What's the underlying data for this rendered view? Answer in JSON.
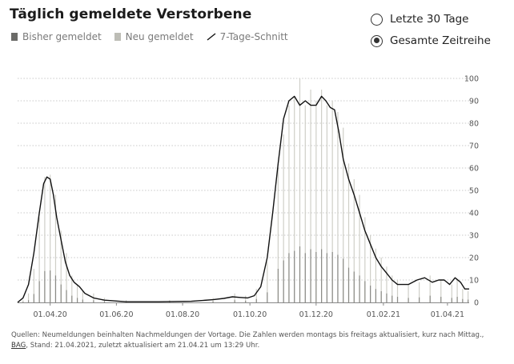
{
  "header": {
    "title": "Täglich gemeldete Verstorbene"
  },
  "legend": {
    "items": [
      {
        "key": "bisher",
        "label": "Bisher gemeldet",
        "color": "#6b6b68"
      },
      {
        "key": "neu",
        "label": "Neu gemeldet",
        "color": "#bdbdb6"
      },
      {
        "key": "avg",
        "label": "7-Tage-Schnitt",
        "color": "#111111"
      }
    ]
  },
  "range_toggle": {
    "options": [
      {
        "label": "Letzte 30 Tage",
        "selected": false
      },
      {
        "label": "Gesamte Zeitreihe",
        "selected": true
      }
    ]
  },
  "footer": {
    "text_before": "Quellen: Neumeldungen beinhalten Nachmeldungen der Vortage. Die Zahlen werden montags bis freitags aktualisiert, kurz nach Mittag., ",
    "source_label": "BAG",
    "text_after": ", Stand: 21.04.2021, zuletzt aktualisiert am 21.04.21 um 13:29 Uhr."
  },
  "chart_data": {
    "type": "bar",
    "title": "Täglich gemeldete Verstorbene",
    "xlabel": "",
    "ylabel": "",
    "ylim": [
      0,
      100
    ],
    "y_ticks": [
      0,
      10,
      20,
      30,
      40,
      50,
      60,
      70,
      80,
      90,
      100
    ],
    "x_ticks": [
      {
        "label": "01.04.20",
        "day": 30
      },
      {
        "label": "01.06.20",
        "day": 91
      },
      {
        "label": "01.08.20",
        "day": 152
      },
      {
        "label": "01.10.20",
        "day": 214
      },
      {
        "label": "01.12.20",
        "day": 275
      },
      {
        "label": "01.02.21",
        "day": 337
      },
      {
        "label": "01.04.21",
        "day": 396
      }
    ],
    "x_domain": [
      0,
      416
    ],
    "grid": true,
    "daily_sampled": [
      {
        "day": 5,
        "value": 1
      },
      {
        "day": 10,
        "value": 4
      },
      {
        "day": 15,
        "value": 15
      },
      {
        "day": 20,
        "value": 38
      },
      {
        "day": 25,
        "value": 56
      },
      {
        "day": 30,
        "value": 57
      },
      {
        "day": 35,
        "value": 48
      },
      {
        "day": 40,
        "value": 32
      },
      {
        "day": 45,
        "value": 22
      },
      {
        "day": 50,
        "value": 12
      },
      {
        "day": 55,
        "value": 8
      },
      {
        "day": 60,
        "value": 5
      },
      {
        "day": 70,
        "value": 4
      },
      {
        "day": 80,
        "value": 2
      },
      {
        "day": 100,
        "value": 1
      },
      {
        "day": 140,
        "value": 1
      },
      {
        "day": 180,
        "value": 2
      },
      {
        "day": 200,
        "value": 4
      },
      {
        "day": 210,
        "value": 3
      },
      {
        "day": 220,
        "value": 6
      },
      {
        "day": 230,
        "value": 18
      },
      {
        "day": 240,
        "value": 60
      },
      {
        "day": 245,
        "value": 75
      },
      {
        "day": 250,
        "value": 88
      },
      {
        "day": 255,
        "value": 92
      },
      {
        "day": 260,
        "value": 100
      },
      {
        "day": 265,
        "value": 88
      },
      {
        "day": 270,
        "value": 95
      },
      {
        "day": 275,
        "value": 90
      },
      {
        "day": 280,
        "value": 95
      },
      {
        "day": 285,
        "value": 88
      },
      {
        "day": 290,
        "value": 90
      },
      {
        "day": 295,
        "value": 85
      },
      {
        "day": 300,
        "value": 78
      },
      {
        "day": 305,
        "value": 62
      },
      {
        "day": 310,
        "value": 55
      },
      {
        "day": 315,
        "value": 48
      },
      {
        "day": 320,
        "value": 38
      },
      {
        "day": 325,
        "value": 30
      },
      {
        "day": 330,
        "value": 24
      },
      {
        "day": 335,
        "value": 20
      },
      {
        "day": 340,
        "value": 16
      },
      {
        "day": 345,
        "value": 12
      },
      {
        "day": 350,
        "value": 10
      },
      {
        "day": 360,
        "value": 8
      },
      {
        "day": 370,
        "value": 9
      },
      {
        "day": 380,
        "value": 12
      },
      {
        "day": 390,
        "value": 10
      },
      {
        "day": 400,
        "value": 8
      },
      {
        "day": 405,
        "value": 10
      },
      {
        "day": 410,
        "value": 6
      },
      {
        "day": 415,
        "value": 5
      }
    ],
    "rolling_avg": [
      {
        "day": 0,
        "value": 0
      },
      {
        "day": 5,
        "value": 2
      },
      {
        "day": 10,
        "value": 8
      },
      {
        "day": 15,
        "value": 22
      },
      {
        "day": 20,
        "value": 40
      },
      {
        "day": 24,
        "value": 53
      },
      {
        "day": 27,
        "value": 56
      },
      {
        "day": 30,
        "value": 55
      },
      {
        "day": 33,
        "value": 48
      },
      {
        "day": 36,
        "value": 38
      },
      {
        "day": 40,
        "value": 28
      },
      {
        "day": 44,
        "value": 18
      },
      {
        "day": 48,
        "value": 12
      },
      {
        "day": 52,
        "value": 9
      },
      {
        "day": 57,
        "value": 7
      },
      {
        "day": 62,
        "value": 4
      },
      {
        "day": 70,
        "value": 2
      },
      {
        "day": 80,
        "value": 1
      },
      {
        "day": 100,
        "value": 0.3
      },
      {
        "day": 130,
        "value": 0.3
      },
      {
        "day": 160,
        "value": 0.5
      },
      {
        "day": 180,
        "value": 1.2
      },
      {
        "day": 190,
        "value": 1.8
      },
      {
        "day": 198,
        "value": 2.5
      },
      {
        "day": 205,
        "value": 2.2
      },
      {
        "day": 212,
        "value": 2
      },
      {
        "day": 218,
        "value": 3
      },
      {
        "day": 224,
        "value": 7
      },
      {
        "day": 230,
        "value": 20
      },
      {
        "day": 235,
        "value": 40
      },
      {
        "day": 240,
        "value": 62
      },
      {
        "day": 245,
        "value": 82
      },
      {
        "day": 250,
        "value": 90
      },
      {
        "day": 255,
        "value": 92
      },
      {
        "day": 260,
        "value": 88
      },
      {
        "day": 265,
        "value": 90
      },
      {
        "day": 270,
        "value": 88
      },
      {
        "day": 275,
        "value": 88
      },
      {
        "day": 280,
        "value": 92
      },
      {
        "day": 284,
        "value": 90
      },
      {
        "day": 288,
        "value": 87
      },
      {
        "day": 292,
        "value": 86
      },
      {
        "day": 296,
        "value": 76
      },
      {
        "day": 300,
        "value": 64
      },
      {
        "day": 305,
        "value": 55
      },
      {
        "day": 310,
        "value": 48
      },
      {
        "day": 315,
        "value": 40
      },
      {
        "day": 320,
        "value": 32
      },
      {
        "day": 325,
        "value": 26
      },
      {
        "day": 330,
        "value": 20
      },
      {
        "day": 335,
        "value": 16
      },
      {
        "day": 340,
        "value": 13
      },
      {
        "day": 345,
        "value": 10
      },
      {
        "day": 350,
        "value": 8
      },
      {
        "day": 360,
        "value": 8
      },
      {
        "day": 368,
        "value": 10
      },
      {
        "day": 375,
        "value": 11
      },
      {
        "day": 382,
        "value": 9
      },
      {
        "day": 388,
        "value": 10
      },
      {
        "day": 393,
        "value": 10
      },
      {
        "day": 398,
        "value": 8
      },
      {
        "day": 403,
        "value": 11
      },
      {
        "day": 408,
        "value": 9
      },
      {
        "day": 412,
        "value": 6
      },
      {
        "day": 416,
        "value": 6
      }
    ]
  }
}
